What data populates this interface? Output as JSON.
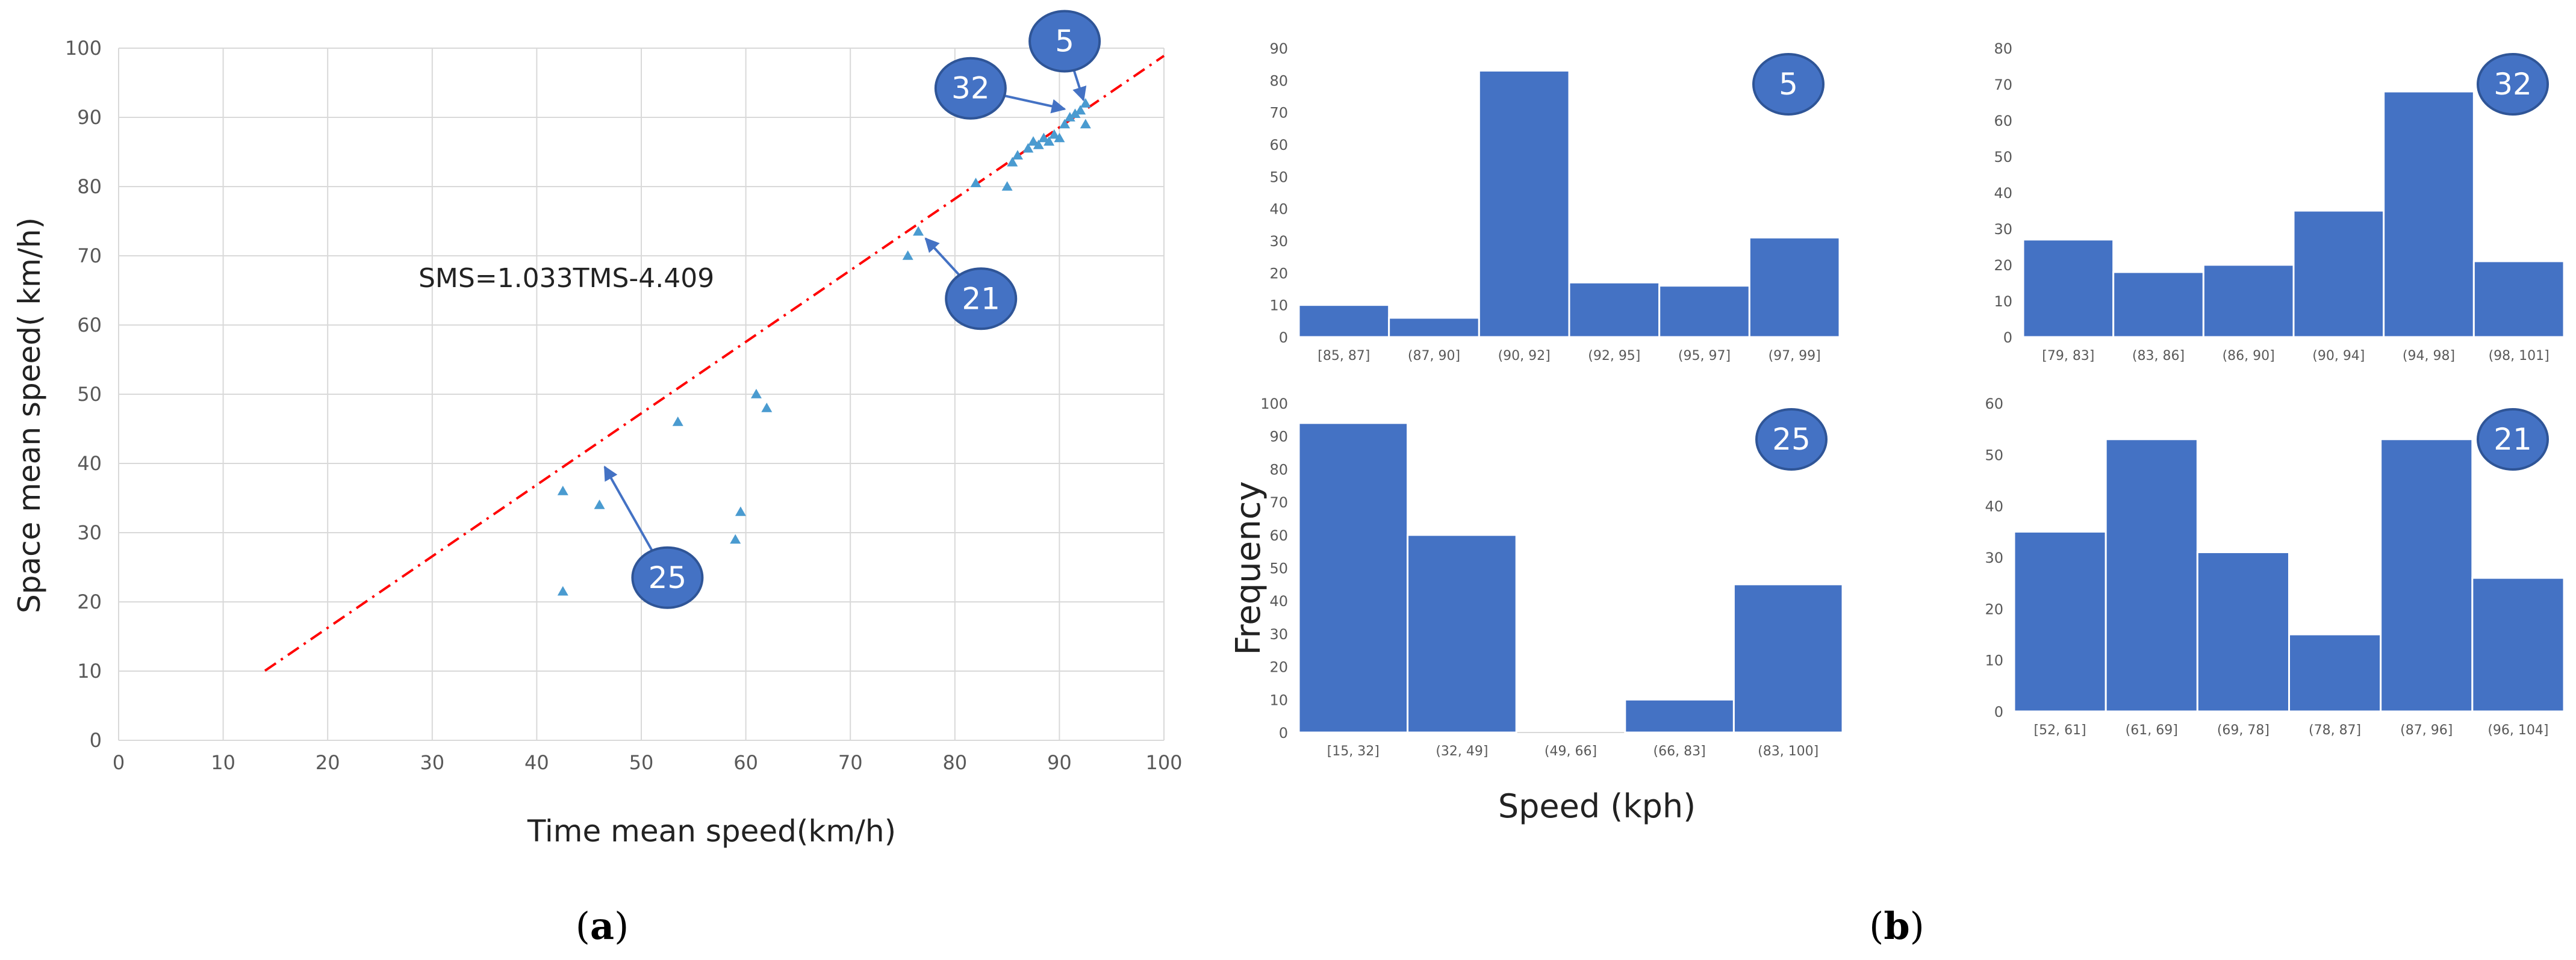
{
  "panels": {
    "a": {
      "label_open": "(",
      "letter": "a",
      "label_close": ")"
    },
    "b": {
      "label_open": "(",
      "letter": "b",
      "label_close": ")"
    }
  },
  "colors": {
    "grid": "#d9d9d9",
    "scatter_marker": "#4a9bd0",
    "trend_line": "#ff0000",
    "bar_fill": "#4472c4",
    "bubble_fill": "#4472c4",
    "bubble_stroke": "#2f5597",
    "arrow": "#4472c4"
  },
  "chart_data": [
    {
      "id": "scatter",
      "type": "scatter",
      "xlabel": "Time mean speed(km/h)",
      "ylabel": "Space mean speed( km/h)",
      "xlim": [
        0,
        100
      ],
      "ylim": [
        0,
        100
      ],
      "xticks": [
        0,
        10,
        20,
        30,
        40,
        50,
        60,
        70,
        80,
        90,
        100
      ],
      "yticks": [
        0,
        10,
        20,
        30,
        40,
        50,
        60,
        70,
        80,
        90,
        100
      ],
      "grid": true,
      "marker": "triangle",
      "points": [
        {
          "x": 42.5,
          "y": 21.5
        },
        {
          "x": 42.5,
          "y": 36
        },
        {
          "x": 46,
          "y": 34
        },
        {
          "x": 53.5,
          "y": 46
        },
        {
          "x": 59,
          "y": 29
        },
        {
          "x": 59.5,
          "y": 33
        },
        {
          "x": 61,
          "y": 50
        },
        {
          "x": 62,
          "y": 48
        },
        {
          "x": 75.5,
          "y": 70
        },
        {
          "x": 76.5,
          "y": 73.5
        },
        {
          "x": 82,
          "y": 80.5
        },
        {
          "x": 85,
          "y": 80
        },
        {
          "x": 85.5,
          "y": 83.5
        },
        {
          "x": 86,
          "y": 84.5
        },
        {
          "x": 87,
          "y": 85.5
        },
        {
          "x": 87.5,
          "y": 86.5
        },
        {
          "x": 88,
          "y": 86
        },
        {
          "x": 88.5,
          "y": 87
        },
        {
          "x": 89,
          "y": 86.5
        },
        {
          "x": 89.5,
          "y": 87.5
        },
        {
          "x": 90,
          "y": 87
        },
        {
          "x": 90.5,
          "y": 89
        },
        {
          "x": 91,
          "y": 90
        },
        {
          "x": 91.5,
          "y": 90.5
        },
        {
          "x": 92,
          "y": 91
        },
        {
          "x": 92.5,
          "y": 89
        },
        {
          "x": 92.5,
          "y": 92
        }
      ],
      "trendline": {
        "equation": "SMS=1.033TMS-4.409",
        "slope": 1.033,
        "intercept": -4.409,
        "x_range": [
          14,
          100
        ],
        "style": "dash-dot"
      },
      "callouts": [
        {
          "label": "5",
          "bubble": {
            "x": 90.5,
            "y": 101
          },
          "target": {
            "x": 92.3,
            "y": 92.5
          }
        },
        {
          "label": "32",
          "bubble": {
            "x": 81.5,
            "y": 94.2
          },
          "target": {
            "x": 90.5,
            "y": 91.2
          }
        },
        {
          "label": "21",
          "bubble": {
            "x": 82.5,
            "y": 63.8
          },
          "target": {
            "x": 77.2,
            "y": 72.5
          }
        },
        {
          "label": "25",
          "bubble": {
            "x": 52.5,
            "y": 23.5
          },
          "target": {
            "x": 46.5,
            "y": 39.5
          }
        }
      ]
    },
    {
      "id": "hist-5",
      "type": "bar",
      "badge": "5",
      "categories": [
        "[85, 87]",
        "(87, 90]",
        "(90, 92]",
        "(92, 95]",
        "(95, 97]",
        "(97, 99]"
      ],
      "values": [
        10,
        6,
        83,
        17,
        16,
        31
      ],
      "ylim": [
        0,
        90
      ],
      "yticks": [
        0,
        10,
        20,
        30,
        40,
        50,
        60,
        70,
        80,
        90
      ]
    },
    {
      "id": "hist-32",
      "type": "bar",
      "badge": "32",
      "categories": [
        "[79, 83]",
        "(83, 86]",
        "(86, 90]",
        "(90, 94]",
        "(94, 98]",
        "(98, 101]"
      ],
      "values": [
        27,
        18,
        20,
        35,
        68,
        21
      ],
      "ylim": [
        0,
        80
      ],
      "yticks": [
        0,
        10,
        20,
        30,
        40,
        50,
        60,
        70,
        80
      ]
    },
    {
      "id": "hist-25",
      "type": "bar",
      "badge": "25",
      "categories": [
        "[15, 32]",
        "(32, 49]",
        "(49, 66]",
        "(66, 83]",
        "(83, 100]"
      ],
      "values": [
        94,
        60,
        0,
        10,
        45
      ],
      "ylim": [
        0,
        100
      ],
      "yticks": [
        0,
        10,
        20,
        30,
        40,
        50,
        60,
        70,
        80,
        90,
        100
      ]
    },
    {
      "id": "hist-21",
      "type": "bar",
      "badge": "21",
      "categories": [
        "[52, 61]",
        "(61, 69]",
        "(69, 78]",
        "(78, 87]",
        "(87, 96]",
        "(96, 104]"
      ],
      "values": [
        35,
        53,
        31,
        15,
        53,
        26
      ],
      "ylim": [
        0,
        60
      ],
      "yticks": [
        0,
        10,
        20,
        30,
        40,
        50,
        60
      ]
    }
  ],
  "histogram_axes": {
    "ylabel": "Frequency",
    "xlabel": "Speed (kph)"
  }
}
